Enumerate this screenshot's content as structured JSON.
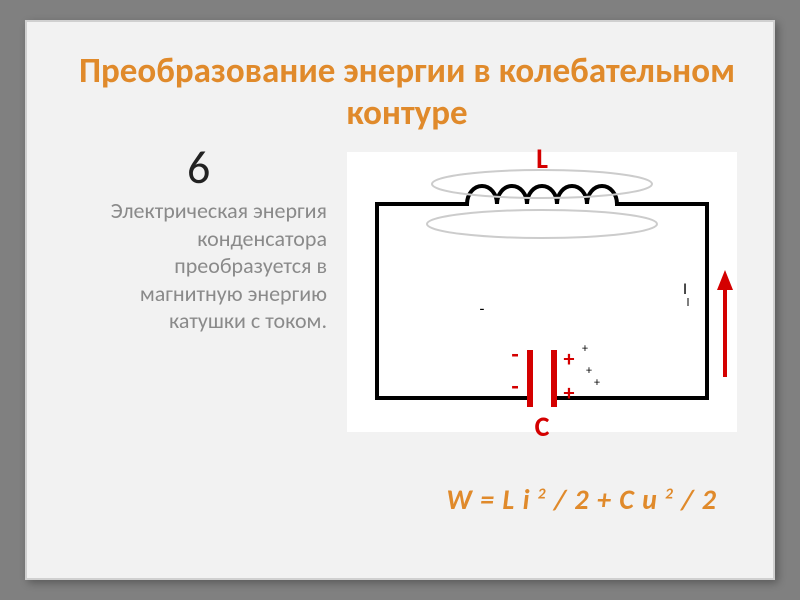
{
  "slide": {
    "title": "Преобразование энергии в колебательном контуре",
    "title_color": "#e08a2b",
    "step_number": "6",
    "body_text": "Электрическая энергия конденсатора преобразуется в магнитную энергию катушки с током.",
    "body_color": "#8a8a8a",
    "formula_html": "W = L i <sup>2</sup> / 2 + C u <sup>2</sup> / 2",
    "formula_color": "#e08a2b",
    "background_color": "#f2f2f2"
  },
  "circuit": {
    "type": "diagram",
    "label_L": "L",
    "label_C": "C",
    "label_I": "I",
    "wire_color": "#000000",
    "wire_width": 4,
    "accent_color": "#d40000",
    "plus_text": "+",
    "minus_text": "-",
    "field_ellipse_stroke": "#cccccc",
    "arrow_color": "#d40000",
    "plate_left_charges": [
      "-",
      "-"
    ],
    "plate_right_charges_red": [
      "+",
      "+"
    ],
    "plate_right_charges_small": [
      "+",
      "+",
      "+"
    ],
    "top_minus": "-",
    "bg": "#ffffff"
  }
}
